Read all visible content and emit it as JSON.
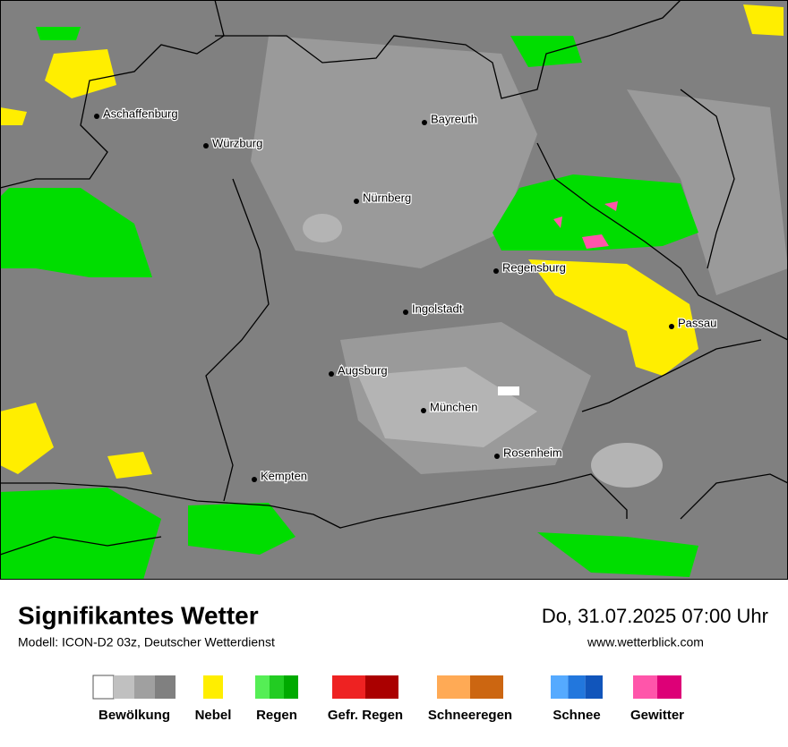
{
  "header": {
    "title": "Signifikantes Wetter",
    "model": "Modell: ICON-D2 03z, Deutscher Wetterdienst",
    "datetime": "Do, 31.07.2025 07:00 Uhr",
    "website": "www.wetterblick.com"
  },
  "cities": [
    "Aschaffenburg",
    "Würzburg",
    "Bayreuth",
    "Nürnberg",
    "Regensburg",
    "Ingolstadt",
    "Passau",
    "Augsburg",
    "München",
    "Rosenheim",
    "Kempten"
  ],
  "legend": [
    {
      "label": "Bewölkung",
      "colors": [
        "#ffffff",
        "#c0c0c0",
        "#a0a0a0",
        "#808080"
      ]
    },
    {
      "label": "Nebel",
      "colors": [
        "#ffee00"
      ]
    },
    {
      "label": "Regen",
      "colors": [
        "#55ee55",
        "#22cc22",
        "#00aa00"
      ]
    },
    {
      "label": "Gefr. Regen",
      "colors": [
        "#ee2222",
        "#aa0000"
      ]
    },
    {
      "label": "Schneeregen",
      "colors": [
        "#ffaa55",
        "#cc6611"
      ]
    },
    {
      "label": "Schnee",
      "colors": [
        "#55aaff",
        "#2277dd",
        "#1155bb"
      ]
    },
    {
      "label": "Gewitter",
      "colors": [
        "#ff55aa",
        "#dd0077"
      ]
    }
  ]
}
